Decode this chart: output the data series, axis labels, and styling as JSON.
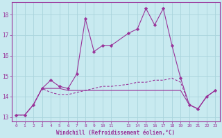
{
  "xlabel": "Windchill (Refroidissement éolien,°C)",
  "background_color": "#c8eaf0",
  "grid_color": "#aad4dc",
  "line_color": "#993399",
  "xlim": [
    -0.5,
    23.5
  ],
  "ylim": [
    12.8,
    18.6
  ],
  "xticks": [
    0,
    1,
    2,
    3,
    4,
    5,
    6,
    7,
    8,
    9,
    10,
    11,
    13,
    14,
    15,
    16,
    17,
    18,
    19,
    20,
    21,
    22,
    23
  ],
  "yticks": [
    13,
    14,
    15,
    16,
    17,
    18
  ],
  "series1_x": [
    0,
    1,
    2,
    3,
    4,
    5,
    6,
    7,
    8,
    9,
    10,
    11,
    13,
    14,
    15,
    16,
    17,
    18,
    19,
    20,
    21,
    22,
    23
  ],
  "series1_y": [
    13.1,
    13.1,
    13.6,
    14.4,
    14.8,
    14.5,
    14.4,
    15.1,
    17.8,
    16.2,
    16.5,
    16.5,
    17.1,
    17.3,
    18.3,
    17.5,
    18.3,
    16.5,
    14.9,
    13.6,
    13.4,
    14.0,
    14.3
  ],
  "series2_x": [
    0,
    1,
    2,
    3,
    4,
    5,
    6,
    7,
    8,
    9,
    10,
    11,
    13,
    14,
    15,
    16,
    17,
    18,
    19,
    20,
    21,
    22,
    23
  ],
  "series2_y": [
    13.1,
    13.1,
    13.6,
    14.4,
    14.4,
    14.4,
    14.3,
    14.3,
    14.3,
    14.3,
    14.3,
    14.3,
    14.3,
    14.3,
    14.3,
    14.3,
    14.3,
    14.3,
    14.3,
    13.6,
    13.4,
    14.0,
    14.3
  ],
  "series3_x": [
    0,
    1,
    2,
    3,
    4,
    5,
    6,
    7,
    8,
    9,
    10,
    11,
    13,
    14,
    15,
    16,
    17,
    18,
    19,
    20,
    21,
    22,
    23
  ],
  "series3_y": [
    13.1,
    13.1,
    13.6,
    14.4,
    14.2,
    14.1,
    14.1,
    14.2,
    14.3,
    14.4,
    14.5,
    14.5,
    14.6,
    14.7,
    14.7,
    14.8,
    14.8,
    14.9,
    14.7,
    13.6,
    13.4,
    14.0,
    14.3
  ]
}
